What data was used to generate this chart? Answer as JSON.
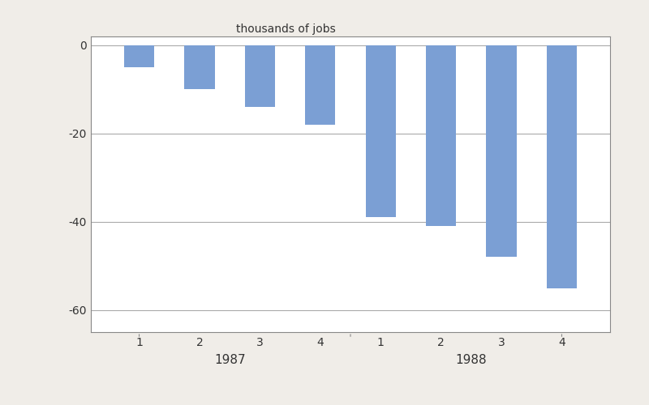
{
  "values": [
    -5,
    -10,
    -14,
    -18,
    -39,
    -41,
    -48,
    -55
  ],
  "bar_color": "#7b9fd4",
  "ylabel_text": "thousands of jobs",
  "ylim": [
    -65,
    2
  ],
  "yticks": [
    0,
    -20,
    -40,
    -60
  ],
  "ytick_labels": [
    "0",
    "-20",
    "-40",
    "-60"
  ],
  "xtick_positions": [
    1,
    2,
    3,
    4,
    5,
    6,
    7,
    8
  ],
  "xtick_labels": [
    "1",
    "2",
    "3",
    "4",
    "1",
    "2",
    "3",
    "4"
  ],
  "year_labels": [
    {
      "label": "1987",
      "x": 2.5
    },
    {
      "label": "1988",
      "x": 6.5
    }
  ],
  "bar_width": 0.5,
  "plot_bg": "#ffffff",
  "fig_bg": "#f0ede8",
  "spine_color": "#888888",
  "grid_color": "#aaaaaa",
  "tick_fontsize": 10,
  "label_fontsize": 10,
  "year_fontsize": 11,
  "ylabel_fontsize": 10
}
